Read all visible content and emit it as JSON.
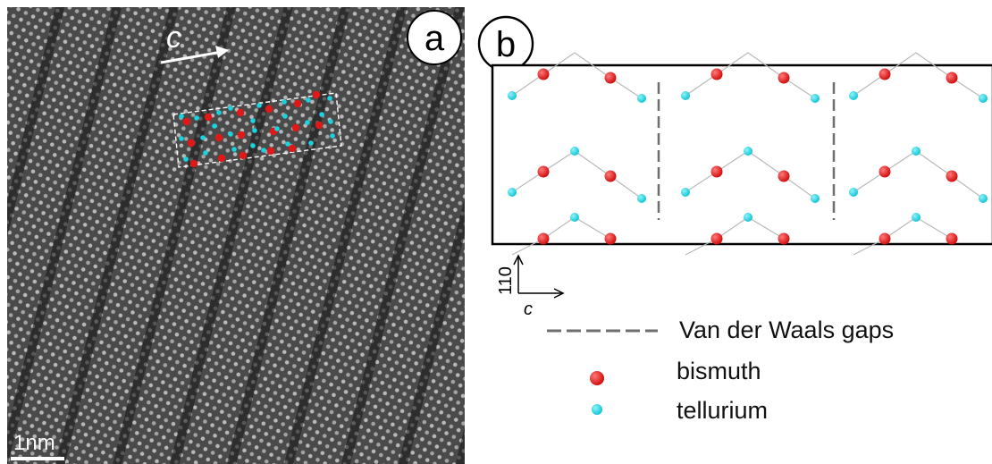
{
  "panel_a": {
    "label": "a",
    "direction_label": "c",
    "scale_bar_label": "1nm"
  },
  "panel_b": {
    "label": "b",
    "axis_vertical": "110",
    "axis_horizontal": "c"
  },
  "legend": {
    "gaps_label": "Van der Waals gaps",
    "bismuth_label": "bismuth",
    "tellurium_label": "tellurium"
  },
  "colors": {
    "bismuth": "#e01818",
    "tellurium": "#19d3e0",
    "gap_line": "#6e6e6e",
    "bond": "#b9b9b9",
    "micrograph_bg": "#4a4a4a"
  }
}
